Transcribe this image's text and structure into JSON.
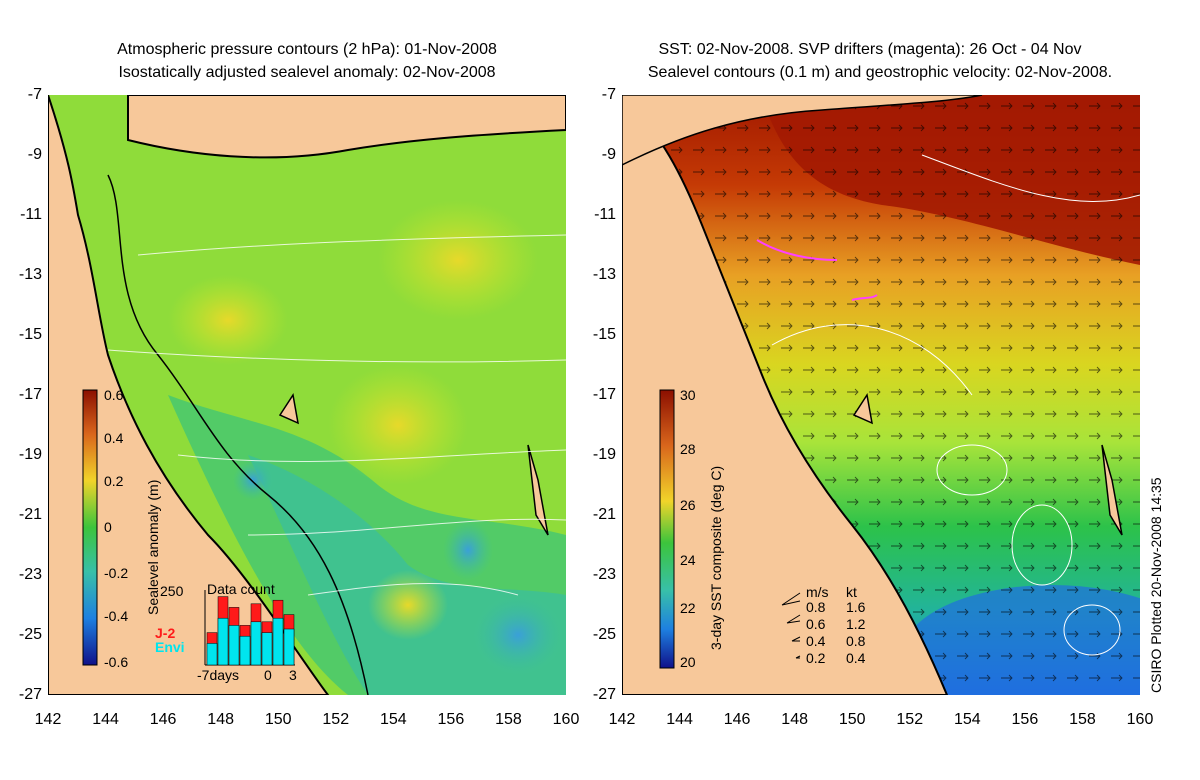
{
  "left_panel": {
    "title_line1": "Atmospheric pressure contours (2 hPa): 01-Nov-2008",
    "title_line2": "Isostatically adjusted sealevel anomaly: 02-Nov-2008",
    "colorbar_label": "Sealevel anomaly (m)",
    "colorbar_ticks": [
      "0.6",
      "0.4",
      "0.2",
      "0",
      "-0.2",
      "-0.4",
      "-0.6"
    ],
    "inset": {
      "title": "Data count",
      "ymax_label": "250",
      "legend_j2": "J-2",
      "legend_envi": "Envi",
      "x_left": "-7days",
      "x_zero": "0",
      "x_right": "3",
      "bars_j2": [
        0.45,
        0.95,
        0.8,
        0.55,
        0.85,
        0.6,
        0.9,
        0.7
      ],
      "bars_envi": [
        0.3,
        0.65,
        0.55,
        0.4,
        0.6,
        0.45,
        0.65,
        0.5
      ]
    }
  },
  "right_panel": {
    "title_line1": "SST: 02-Nov-2008. SVP drifters (magenta): 26 Oct - 04 Nov",
    "title_line2": "Sealevel contours (0.1 m) and geostrophic velocity: 02-Nov-2008.",
    "colorbar_label": "3-day SST composite (deg C)",
    "colorbar_ticks": [
      "30",
      "28",
      "26",
      "24",
      "22",
      "20"
    ],
    "speed_legend": {
      "header_ms": "m/s",
      "header_kt": "kt",
      "rows": [
        {
          "ms": "0.8",
          "kt": "1.6"
        },
        {
          "ms": "0.6",
          "kt": "1.2"
        },
        {
          "ms": "0.4",
          "kt": "0.8"
        },
        {
          "ms": "0.2",
          "kt": "0.4"
        }
      ]
    },
    "credit": "CSIRO Plotted 20-Nov-2008 14:35"
  },
  "axes": {
    "lat_ticks": [
      "-7",
      "-9",
      "-11",
      "-13",
      "-15",
      "-17",
      "-19",
      "-21",
      "-23",
      "-25",
      "-27"
    ],
    "lon_ticks": [
      "142",
      "144",
      "146",
      "148",
      "150",
      "152",
      "154",
      "156",
      "158",
      "160"
    ]
  },
  "colors": {
    "land": "#f7c89a",
    "coast": "#000000",
    "drifter": "#ff40ff",
    "j2": "#ff1a1a",
    "envi": "#00e5ee"
  }
}
